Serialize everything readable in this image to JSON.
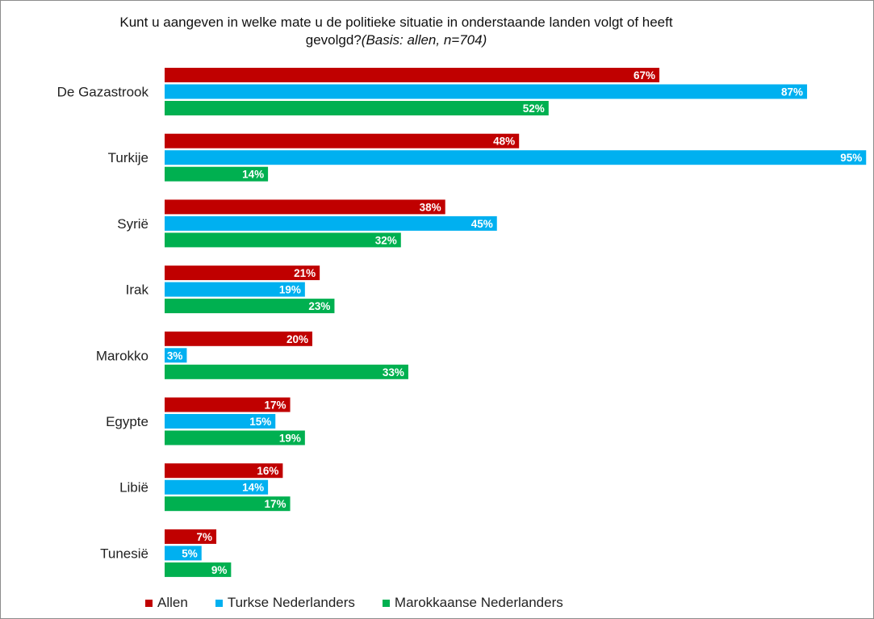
{
  "title_line1": "Kunt u aangeven in welke mate u de politieke situatie in onderstaande landen volgt of heeft",
  "title_line2_prefix": "gevolgd?",
  "title_line2_basis": "(Basis: allen, n=704)",
  "chart_data": {
    "type": "bar",
    "orientation": "horizontal",
    "title": "Kunt u aangeven in welke mate u de politieke situatie in onderstaande landen volgt of heeft gevolgd?(Basis: allen, n=704)",
    "categories": [
      "De Gazastrook",
      "Turkije",
      "Syrië",
      "Irak",
      "Marokko",
      "Egypte",
      "Libië",
      "Tunesië"
    ],
    "series": [
      {
        "name": "Allen",
        "color": "#c00000",
        "values": [
          67,
          48,
          38,
          21,
          20,
          17,
          16,
          7
        ]
      },
      {
        "name": "Turkse Nederlanders",
        "color": "#00b0f0",
        "values": [
          87,
          95,
          45,
          19,
          3,
          15,
          14,
          5
        ]
      },
      {
        "name": "Marokkaanse Nederlanders",
        "color": "#00b050",
        "values": [
          52,
          14,
          32,
          23,
          33,
          19,
          17,
          9
        ]
      }
    ],
    "value_suffix": "%",
    "xlim": [
      0,
      95
    ],
    "grid": false,
    "legend_position": "bottom"
  }
}
